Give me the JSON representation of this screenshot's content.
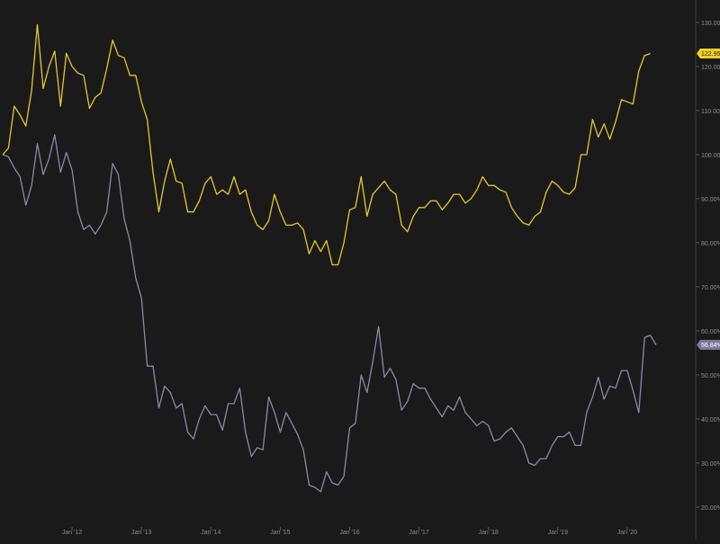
{
  "chart_data": {
    "type": "line",
    "title": "",
    "xlabel": "",
    "ylabel": "",
    "grid": false,
    "legend": "none",
    "y_axis_position": "right",
    "ylim": [
      17,
      132
    ],
    "y_ticks": [
      {
        "value": 130,
        "label": "130.00%"
      },
      {
        "value": 120,
        "label": "120.00%"
      },
      {
        "value": 110,
        "label": "110.00%"
      },
      {
        "value": 100,
        "label": "100.00%"
      },
      {
        "value": 90,
        "label": "90.00%"
      },
      {
        "value": 80,
        "label": "80.00%"
      },
      {
        "value": 70,
        "label": "70.00%"
      },
      {
        "value": 60,
        "label": "60.00%"
      },
      {
        "value": 50,
        "label": "50.00%"
      },
      {
        "value": 40,
        "label": "40.00%"
      },
      {
        "value": 30,
        "label": "30.00%"
      },
      {
        "value": 20,
        "label": "20.00%"
      }
    ],
    "x_ticks": [
      {
        "month": 12,
        "label": "Jan '12"
      },
      {
        "month": 24,
        "label": "Jan '13"
      },
      {
        "month": 36,
        "label": "Jan '14"
      },
      {
        "month": 48,
        "label": "Jan '15"
      },
      {
        "month": 60,
        "label": "Jan '16"
      },
      {
        "month": 72,
        "label": "Jan '17"
      },
      {
        "month": 84,
        "label": "Jan '18"
      },
      {
        "month": 96,
        "label": "Jan '19"
      },
      {
        "month": 108,
        "label": "Jan '20"
      }
    ],
    "xlim_months": [
      0,
      112
    ],
    "series": [
      {
        "name": "",
        "color": "#e6c919",
        "end_label": "122.95%",
        "label_bg": "#f2d313",
        "label_fg": "#1a1a1a",
        "points": [
          [
            0,
            100
          ],
          [
            1,
            101.5
          ],
          [
            2,
            111
          ],
          [
            3,
            109
          ],
          [
            4,
            106.5
          ],
          [
            5,
            114.5
          ],
          [
            6,
            129.5
          ],
          [
            7,
            115
          ],
          [
            8,
            120
          ],
          [
            9,
            123.5
          ],
          [
            10,
            111
          ],
          [
            11,
            123
          ],
          [
            12,
            120
          ],
          [
            13,
            118.5
          ],
          [
            14,
            118
          ],
          [
            15,
            110.5
          ],
          [
            16,
            113
          ],
          [
            17,
            114
          ],
          [
            18,
            119.5
          ],
          [
            19,
            126
          ],
          [
            20,
            122.5
          ],
          [
            21,
            122
          ],
          [
            22,
            118
          ],
          [
            23,
            118
          ],
          [
            24,
            112
          ],
          [
            25,
            108
          ],
          [
            26,
            96
          ],
          [
            27,
            87
          ],
          [
            28,
            94
          ],
          [
            29,
            99
          ],
          [
            30,
            94
          ],
          [
            31,
            93.5
          ],
          [
            32,
            87
          ],
          [
            33,
            87
          ],
          [
            34,
            89.5
          ],
          [
            35,
            93.5
          ],
          [
            36,
            95
          ],
          [
            37,
            91
          ],
          [
            38,
            92
          ],
          [
            39,
            91
          ],
          [
            40,
            95
          ],
          [
            41,
            91
          ],
          [
            42,
            92
          ],
          [
            43,
            87
          ],
          [
            44,
            84
          ],
          [
            45,
            83
          ],
          [
            46,
            85
          ],
          [
            47,
            91
          ],
          [
            48,
            87
          ],
          [
            49,
            84
          ],
          [
            50,
            84
          ],
          [
            51,
            84.5
          ],
          [
            52,
            83
          ],
          [
            53,
            77.5
          ],
          [
            54,
            80.5
          ],
          [
            55,
            78
          ],
          [
            56,
            80.5
          ],
          [
            57,
            75
          ],
          [
            58,
            75
          ],
          [
            59,
            80
          ],
          [
            60,
            87.5
          ],
          [
            61,
            88
          ],
          [
            62,
            95
          ],
          [
            63,
            86
          ],
          [
            64,
            91
          ],
          [
            65,
            92.5
          ],
          [
            66,
            94
          ],
          [
            67,
            92
          ],
          [
            68,
            91
          ],
          [
            69,
            84
          ],
          [
            70,
            82.5
          ],
          [
            71,
            86
          ],
          [
            72,
            88
          ],
          [
            73,
            88
          ],
          [
            74,
            89.5
          ],
          [
            75,
            89.5
          ],
          [
            76,
            87.5
          ],
          [
            77,
            89
          ],
          [
            78,
            91
          ],
          [
            79,
            91
          ],
          [
            80,
            89
          ],
          [
            81,
            90
          ],
          [
            82,
            92
          ],
          [
            83,
            95
          ],
          [
            84,
            93
          ],
          [
            85,
            93
          ],
          [
            86,
            92
          ],
          [
            87,
            91.5
          ],
          [
            88,
            88
          ],
          [
            89,
            86
          ],
          [
            90,
            84.5
          ],
          [
            91,
            84
          ],
          [
            92,
            86
          ],
          [
            93,
            87
          ],
          [
            94,
            91.5
          ],
          [
            95,
            94
          ],
          [
            96,
            93
          ],
          [
            97,
            91.5
          ],
          [
            98,
            91
          ],
          [
            99,
            92.5
          ],
          [
            100,
            100
          ],
          [
            101,
            100
          ],
          [
            102,
            108
          ],
          [
            103,
            104
          ],
          [
            104,
            107
          ],
          [
            105,
            103.5
          ],
          [
            106,
            107.5
          ],
          [
            107,
            112.5
          ],
          [
            108,
            112
          ],
          [
            109,
            111.5
          ],
          [
            110,
            119
          ],
          [
            111,
            122.5
          ],
          [
            112,
            122.95
          ]
        ]
      },
      {
        "name": "",
        "color": "#8e87a8",
        "end_label": "56.84%",
        "label_bg": "#7e779c",
        "label_fg": "#ffffff",
        "points": [
          [
            0,
            100
          ],
          [
            1,
            99.5
          ],
          [
            2,
            97
          ],
          [
            3,
            95
          ],
          [
            4,
            88.5
          ],
          [
            5,
            93
          ],
          [
            6,
            102.5
          ],
          [
            7,
            95.5
          ],
          [
            8,
            99
          ],
          [
            9,
            104.5
          ],
          [
            10,
            96
          ],
          [
            11,
            100.5
          ],
          [
            12,
            96.5
          ],
          [
            13,
            87
          ],
          [
            14,
            83
          ],
          [
            15,
            84
          ],
          [
            16,
            82
          ],
          [
            17,
            84
          ],
          [
            18,
            87
          ],
          [
            19,
            98
          ],
          [
            20,
            95.5
          ],
          [
            21,
            85.5
          ],
          [
            22,
            80.5
          ],
          [
            23,
            72
          ],
          [
            24,
            67.5
          ],
          [
            25,
            52
          ],
          [
            26,
            52
          ],
          [
            27,
            42.5
          ],
          [
            28,
            47.5
          ],
          [
            29,
            46
          ],
          [
            30,
            42.5
          ],
          [
            31,
            43.5
          ],
          [
            32,
            37
          ],
          [
            33,
            35.5
          ],
          [
            34,
            40
          ],
          [
            35,
            43
          ],
          [
            36,
            41
          ],
          [
            37,
            41
          ],
          [
            38,
            37.5
          ],
          [
            39,
            43.5
          ],
          [
            40,
            43.5
          ],
          [
            41,
            47
          ],
          [
            42,
            37
          ],
          [
            43,
            31.5
          ],
          [
            44,
            33.5
          ],
          [
            45,
            33
          ],
          [
            46,
            45
          ],
          [
            47,
            41.5
          ],
          [
            48,
            37
          ],
          [
            49,
            41.5
          ],
          [
            50,
            39
          ],
          [
            51,
            36.5
          ],
          [
            52,
            33
          ],
          [
            53,
            25
          ],
          [
            54,
            24.5
          ],
          [
            55,
            23.5
          ],
          [
            56,
            28
          ],
          [
            57,
            25.5
          ],
          [
            58,
            25
          ],
          [
            59,
            27
          ],
          [
            60,
            38
          ],
          [
            61,
            39
          ],
          [
            62,
            50
          ],
          [
            63,
            46
          ],
          [
            64,
            53
          ],
          [
            65,
            61
          ],
          [
            66,
            49.5
          ],
          [
            67,
            51.5
          ],
          [
            68,
            49
          ],
          [
            69,
            42
          ],
          [
            70,
            44
          ],
          [
            71,
            48
          ],
          [
            72,
            47
          ],
          [
            73,
            47
          ],
          [
            74,
            44.5
          ],
          [
            75,
            42.5
          ],
          [
            76,
            40.5
          ],
          [
            77,
            43
          ],
          [
            78,
            42
          ],
          [
            79,
            45
          ],
          [
            80,
            41.5
          ],
          [
            81,
            40
          ],
          [
            82,
            38.5
          ],
          [
            83,
            39.5
          ],
          [
            84,
            38.5
          ],
          [
            85,
            35
          ],
          [
            86,
            35.5
          ],
          [
            87,
            37
          ],
          [
            88,
            38
          ],
          [
            89,
            36
          ],
          [
            90,
            34
          ],
          [
            91,
            30
          ],
          [
            92,
            29.5
          ],
          [
            93,
            31
          ],
          [
            94,
            31
          ],
          [
            95,
            34
          ],
          [
            96,
            36
          ],
          [
            97,
            36
          ],
          [
            98,
            37
          ],
          [
            99,
            34
          ],
          [
            100,
            34
          ],
          [
            101,
            41.5
          ],
          [
            102,
            45
          ],
          [
            103,
            49.5
          ],
          [
            104,
            44.5
          ],
          [
            105,
            47.5
          ],
          [
            106,
            47
          ],
          [
            107,
            51
          ],
          [
            108,
            51
          ],
          [
            109,
            46.5
          ],
          [
            110,
            41.5
          ],
          [
            111,
            58.5
          ],
          [
            112,
            59
          ],
          [
            113,
            56.84
          ]
        ]
      }
    ]
  }
}
